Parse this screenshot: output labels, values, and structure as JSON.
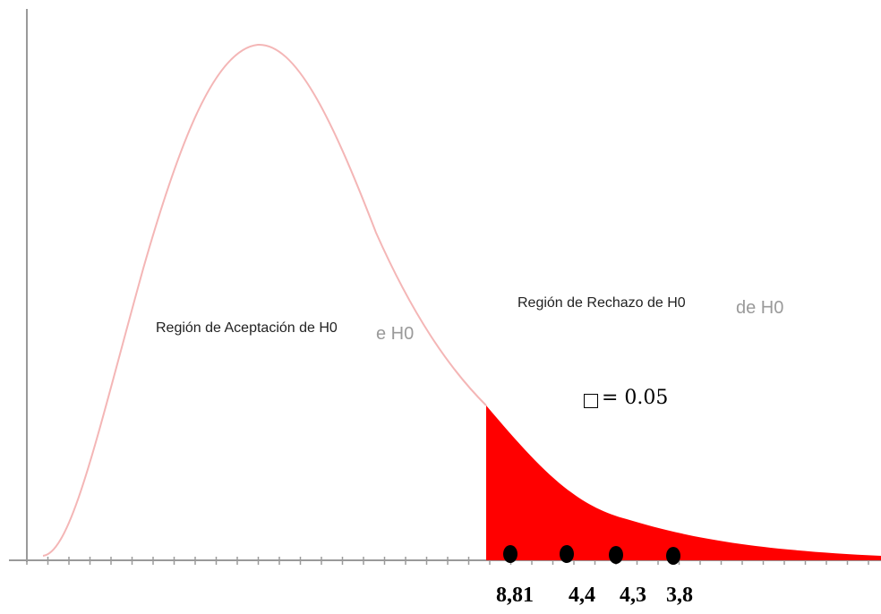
{
  "labels": {
    "acceptance_region": "Región de Aceptación de H0",
    "acceptance_ghost": "e H0",
    "rejection_region": "Región de Rechazo de H0",
    "rejection_ghost": "de H0",
    "alpha": "= 0.05"
  },
  "test_statistics": [
    "8,81",
    "4,4",
    "4,3",
    "3,8"
  ],
  "colors": {
    "curve": "#f4b6b6",
    "rejection_fill": "#ff0000",
    "axis": "#9a9a9a",
    "points": "#000000"
  },
  "icons": {
    "alpha_symbol": "empty-square-glyph"
  }
}
